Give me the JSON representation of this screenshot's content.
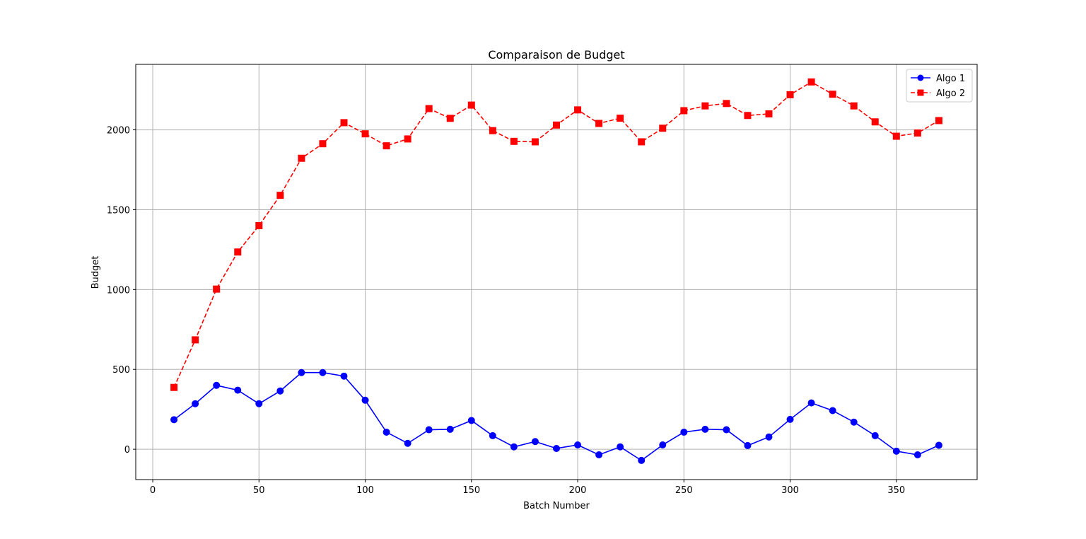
{
  "chart_data": {
    "type": "line",
    "title": "Comparaison de Budget",
    "xlabel": "Batch Number",
    "ylabel": "Budget",
    "xlim": [
      -8,
      388
    ],
    "ylim": [
      -190,
      2410
    ],
    "xticks": [
      0,
      50,
      100,
      150,
      200,
      250,
      300,
      350
    ],
    "yticks": [
      0,
      500,
      1000,
      1500,
      2000
    ],
    "grid": true,
    "legend_position": "top-right",
    "x": [
      10,
      20,
      30,
      40,
      50,
      60,
      70,
      80,
      90,
      100,
      110,
      120,
      130,
      140,
      150,
      160,
      170,
      180,
      190,
      200,
      210,
      220,
      230,
      240,
      250,
      260,
      270,
      280,
      290,
      300,
      310,
      320,
      330,
      340,
      350,
      360,
      370
    ],
    "series": [
      {
        "name": "Algo 1",
        "color": "#0000ff",
        "marker": "circle",
        "linestyle": "solid",
        "values": [
          185,
          285,
          400,
          370,
          285,
          365,
          480,
          480,
          458,
          307,
          107,
          37,
          122,
          125,
          180,
          85,
          15,
          48,
          5,
          27,
          -35,
          15,
          -70,
          27,
          107,
          125,
          122,
          23,
          77,
          187,
          290,
          242,
          170,
          85,
          -12,
          -35,
          25
        ]
      },
      {
        "name": "Algo 2",
        "color": "#ff0000",
        "marker": "square",
        "linestyle": "dashed",
        "values": [
          387,
          685,
          1003,
          1235,
          1400,
          1590,
          1822,
          1913,
          2045,
          1975,
          1900,
          1943,
          2133,
          2072,
          2155,
          1995,
          1928,
          1925,
          2030,
          2125,
          2040,
          2073,
          1925,
          2010,
          2120,
          2150,
          2165,
          2090,
          2100,
          2220,
          2300,
          2223,
          2150,
          2050,
          1960,
          1980,
          2058
        ]
      }
    ]
  }
}
